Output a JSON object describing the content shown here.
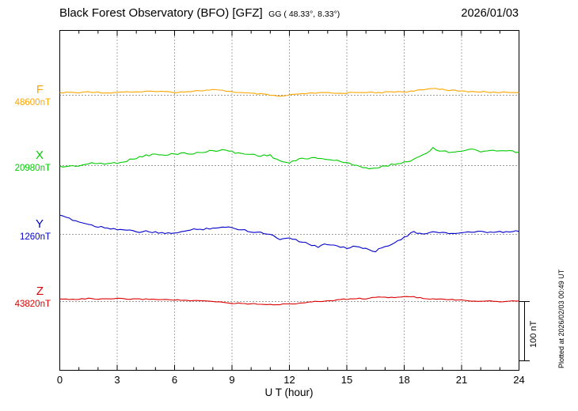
{
  "header": {
    "title": "Black Forest Observatory (BFO)  [GFZ]",
    "subtitle": "GG ( 48.33°,  8.33°)",
    "date": "2026/01/03"
  },
  "side": {
    "plotted_at": "Plotted at 2026/02/03 00:49 UT"
  },
  "chart_data": {
    "type": "line",
    "title": "Black Forest Observatory (BFO) [GFZ] magnetogram 2026/01/03",
    "xlabel": "U T (hour)",
    "xlim": [
      0,
      24
    ],
    "x_ticks": [
      0,
      3,
      6,
      9,
      12,
      15,
      18,
      21,
      24
    ],
    "grid": "dotted vertical gridlines every 3 hours; dotted horizontal baseline per component",
    "scale_bar": {
      "label": "100 nT",
      "nT": 100
    },
    "x": [
      0,
      0.5,
      1,
      1.5,
      2,
      2.5,
      3,
      3.5,
      4,
      4.5,
      5,
      5.5,
      6,
      6.5,
      7,
      7.5,
      8,
      8.5,
      9,
      9.5,
      10,
      10.5,
      11,
      11.5,
      12,
      12.5,
      13,
      13.5,
      14,
      14.5,
      15,
      15.5,
      16,
      16.5,
      17,
      17.5,
      18,
      18.5,
      19,
      19.5,
      20,
      20.5,
      21,
      21.5,
      22,
      22.5,
      23,
      23.5,
      24
    ],
    "series": [
      {
        "name": "F",
        "color": "#FFA500",
        "baseline_nT": 48600,
        "baseline_label": "48600nT",
        "offsets_from_baseline_nT": [
          4,
          5,
          4,
          6,
          5,
          4,
          5,
          6,
          5,
          6,
          7,
          6,
          5,
          6,
          7,
          8,
          9,
          8,
          6,
          4,
          3,
          2,
          0,
          -2,
          0,
          2,
          3,
          4,
          4,
          3,
          4,
          5,
          5,
          4,
          5,
          6,
          6,
          7,
          9,
          12,
          10,
          8,
          7,
          6,
          6,
          5,
          5,
          5,
          5
        ]
      },
      {
        "name": "X",
        "color": "#00CC00",
        "baseline_nT": 20980,
        "baseline_label": "20980nT",
        "offsets_from_baseline_nT": [
          -2,
          -1,
          0,
          3,
          4,
          3,
          5,
          8,
          13,
          17,
          19,
          17,
          20,
          21,
          20,
          23,
          25,
          27,
          23,
          20,
          19,
          17,
          17,
          8,
          4,
          11,
          13,
          12,
          11,
          8,
          4,
          1,
          -4,
          -5,
          -1,
          3,
          5,
          11,
          19,
          29,
          24,
          23,
          25,
          27,
          24,
          24,
          25,
          24,
          23
        ]
      },
      {
        "name": "Y",
        "color": "#0000CC",
        "baseline_nT": 1260,
        "baseline_label": "1260nT",
        "offsets_from_baseline_nT": [
          31,
          27,
          21,
          17,
          13,
          11,
          9,
          7,
          4,
          5,
          3,
          1,
          3,
          5,
          8,
          9,
          11,
          12,
          11,
          8,
          5,
          3,
          0,
          -8,
          -5,
          -11,
          -16,
          -21,
          -16,
          -19,
          -23,
          -20,
          -25,
          -28,
          -21,
          -13,
          -5,
          4,
          0,
          3,
          4,
          1,
          3,
          3,
          4,
          3,
          4,
          4,
          5
        ]
      },
      {
        "name": "Z",
        "color": "#DD0000",
        "baseline_nT": 43820,
        "baseline_label": "43820nT",
        "offsets_from_baseline_nT": [
          4,
          4,
          4,
          5,
          4,
          4,
          5,
          4,
          4,
          4,
          4,
          3,
          3,
          2,
          1,
          1,
          0,
          -1,
          -3,
          -3,
          -4,
          -4,
          -5,
          -5,
          -4,
          -3,
          -1,
          0,
          1,
          3,
          4,
          5,
          5,
          7,
          7,
          7,
          8,
          8,
          5,
          4,
          4,
          3,
          3,
          1,
          1,
          1,
          0,
          1,
          1
        ]
      }
    ]
  }
}
